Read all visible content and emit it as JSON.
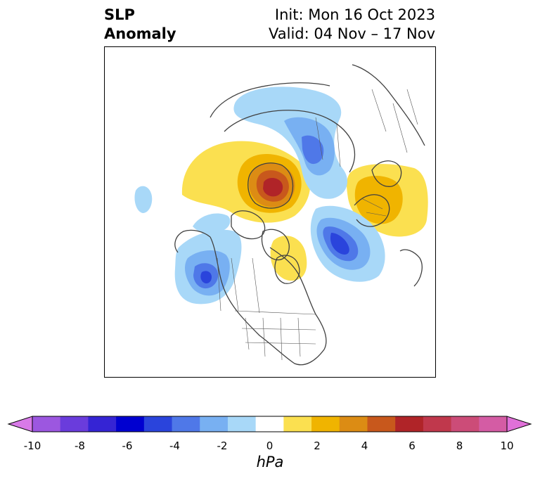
{
  "header": {
    "title_line1": "SLP",
    "title_line2": "Anomaly",
    "init_text": "Init: Mon 16 Oct 2023",
    "valid_text": "Valid: 04 Nov – 17 Nov"
  },
  "colorbar": {
    "unit": "hPa",
    "tick_labels": [
      "-10",
      "-8",
      "-6",
      "-4",
      "-2",
      "0",
      "2",
      "4",
      "6",
      "8",
      "10"
    ],
    "bins": [
      {
        "range": "-10 to -9",
        "color": "#d87ae8"
      },
      {
        "range": "-9 to -8",
        "color": "#9c57e0"
      },
      {
        "range": "-8 to -7",
        "color": "#6a3cdc"
      },
      {
        "range": "-7 to -6",
        "color": "#3524d4"
      },
      {
        "range": "-6 to -5",
        "color": "#0000d0"
      },
      {
        "range": "-5 to -4",
        "color": "#2a44dc"
      },
      {
        "range": "-4 to -3",
        "color": "#4f78e8"
      },
      {
        "range": "-3 to -2",
        "color": "#78b0f2"
      },
      {
        "range": "-2 to -1",
        "color": "#a8d8f8"
      },
      {
        "range": "-1 to 1",
        "color": "#ffffff"
      },
      {
        "range": "1 to 2",
        "color": "#fbe050"
      },
      {
        "range": "2 to 3",
        "color": "#f0b400"
      },
      {
        "range": "3 to 4",
        "color": "#dc8c14"
      },
      {
        "range": "4 to 5",
        "color": "#c8581c"
      },
      {
        "range": "5 to 6",
        "color": "#b02428"
      },
      {
        "range": "6 to 7",
        "color": "#c0384c"
      },
      {
        "range": "7 to 8",
        "color": "#cc4c78"
      },
      {
        "range": "8 to 9",
        "color": "#d45ca4"
      },
      {
        "range": "9 to 10",
        "color": "#e070d8"
      }
    ],
    "extend": "both"
  },
  "map": {
    "projection": "north-polar-stereographic",
    "region": "Northern Hemisphere centered on North America / Arctic",
    "features": [
      "coastlines",
      "country-borders",
      "state-province-borders"
    ]
  }
}
